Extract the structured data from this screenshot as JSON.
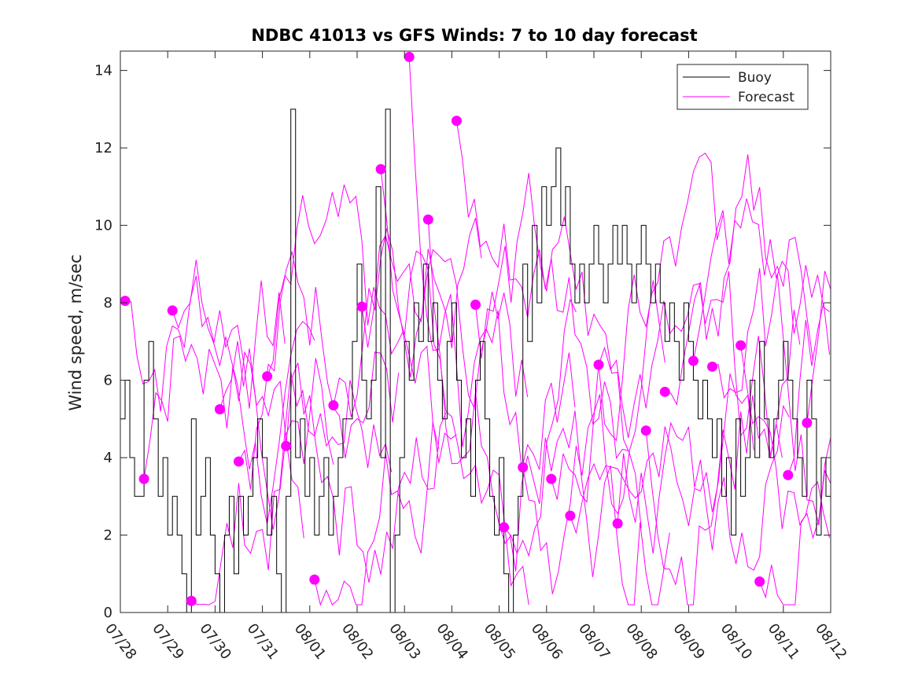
{
  "chart_data": {
    "type": "line",
    "title": "NDBC 41013 vs GFS Winds: 7 to 10 day forecast",
    "xlabel": "",
    "ylabel": "Wind speed, m/sec",
    "x_tick_labels": [
      "07/28",
      "07/29",
      "07/30",
      "07/31",
      "08/01",
      "08/02",
      "08/03",
      "08/04",
      "08/05",
      "08/06",
      "08/07",
      "08/08",
      "08/09",
      "08/10",
      "08/11",
      "08/12"
    ],
    "xlim_days": [
      0,
      15
    ],
    "ylim": [
      0,
      14.5
    ],
    "y_ticks": [
      0,
      2,
      4,
      6,
      8,
      10,
      12,
      14
    ],
    "grid": false,
    "legend_position": "top-right",
    "colors": {
      "buoy": "#000000",
      "forecast": "#ff00ff"
    },
    "series": [
      {
        "name": "Buoy",
        "style": "step-line",
        "points": [
          [
            0,
            5
          ],
          [
            0.1,
            6
          ],
          [
            0.2,
            4
          ],
          [
            0.3,
            3
          ],
          [
            0.5,
            6
          ],
          [
            0.6,
            7
          ],
          [
            0.7,
            5
          ],
          [
            0.8,
            3
          ],
          [
            0.9,
            4
          ],
          [
            1.0,
            2
          ],
          [
            1.1,
            3
          ],
          [
            1.2,
            2
          ],
          [
            1.3,
            1
          ],
          [
            1.4,
            0
          ],
          [
            1.5,
            5
          ],
          [
            1.6,
            2
          ],
          [
            1.7,
            3
          ],
          [
            1.8,
            4
          ],
          [
            1.9,
            2
          ],
          [
            2.0,
            1
          ],
          [
            2.1,
            0
          ],
          [
            2.2,
            2
          ],
          [
            2.3,
            3
          ],
          [
            2.4,
            1
          ],
          [
            2.5,
            3
          ],
          [
            2.6,
            2
          ],
          [
            2.7,
            3
          ],
          [
            2.8,
            4
          ],
          [
            2.9,
            5
          ],
          [
            3.0,
            4
          ],
          [
            3.1,
            2
          ],
          [
            3.2,
            3
          ],
          [
            3.3,
            1
          ],
          [
            3.4,
            0
          ],
          [
            3.5,
            3
          ],
          [
            3.6,
            13
          ],
          [
            3.7,
            4
          ],
          [
            3.8,
            5
          ],
          [
            3.9,
            3
          ],
          [
            4.0,
            4
          ],
          [
            4.1,
            2
          ],
          [
            4.2,
            3
          ],
          [
            4.3,
            4
          ],
          [
            4.4,
            2
          ],
          [
            4.5,
            3
          ],
          [
            4.6,
            4
          ],
          [
            4.7,
            5
          ],
          [
            4.8,
            5
          ],
          [
            4.9,
            7
          ],
          [
            5.0,
            9
          ],
          [
            5.1,
            6
          ],
          [
            5.2,
            5
          ],
          [
            5.3,
            6
          ],
          [
            5.4,
            11
          ],
          [
            5.5,
            4
          ],
          [
            5.6,
            13
          ],
          [
            5.7,
            0
          ],
          [
            5.8,
            2
          ],
          [
            5.9,
            4
          ],
          [
            6.0,
            7
          ],
          [
            6.1,
            6
          ],
          [
            6.2,
            8
          ],
          [
            6.3,
            7
          ],
          [
            6.4,
            9
          ],
          [
            6.5,
            7
          ],
          [
            6.6,
            8
          ],
          [
            6.7,
            6
          ],
          [
            6.8,
            5
          ],
          [
            6.9,
            7
          ],
          [
            7.0,
            8
          ],
          [
            7.1,
            6
          ],
          [
            7.2,
            4
          ],
          [
            7.3,
            5
          ],
          [
            7.4,
            3
          ],
          [
            7.5,
            6
          ],
          [
            7.6,
            7
          ],
          [
            7.7,
            5
          ],
          [
            7.8,
            3
          ],
          [
            7.9,
            2
          ],
          [
            8.0,
            4
          ],
          [
            8.1,
            1
          ],
          [
            8.2,
            0
          ],
          [
            8.3,
            2
          ],
          [
            8.4,
            3
          ],
          [
            8.5,
            9
          ],
          [
            8.6,
            7
          ],
          [
            8.7,
            10
          ],
          [
            8.8,
            8
          ],
          [
            8.9,
            11
          ],
          [
            9.0,
            10
          ],
          [
            9.1,
            11
          ],
          [
            9.2,
            12
          ],
          [
            9.3,
            10
          ],
          [
            9.4,
            11
          ],
          [
            9.5,
            9
          ],
          [
            9.6,
            8
          ],
          [
            9.7,
            9
          ],
          [
            9.8,
            8
          ],
          [
            9.9,
            9
          ],
          [
            10.0,
            10
          ],
          [
            10.1,
            9
          ],
          [
            10.2,
            8
          ],
          [
            10.3,
            9
          ],
          [
            10.4,
            10
          ],
          [
            10.5,
            9
          ],
          [
            10.6,
            10
          ],
          [
            10.7,
            9
          ],
          [
            10.8,
            8
          ],
          [
            10.9,
            9
          ],
          [
            11.0,
            10
          ],
          [
            11.1,
            9
          ],
          [
            11.2,
            8
          ],
          [
            11.3,
            9
          ],
          [
            11.4,
            8
          ],
          [
            11.5,
            7
          ],
          [
            11.6,
            8
          ],
          [
            11.7,
            7
          ],
          [
            11.8,
            6
          ],
          [
            11.9,
            8
          ],
          [
            12.0,
            7
          ],
          [
            12.1,
            6
          ],
          [
            12.2,
            5
          ],
          [
            12.3,
            6
          ],
          [
            12.4,
            5
          ],
          [
            12.5,
            4
          ],
          [
            12.6,
            5
          ],
          [
            12.7,
            3
          ],
          [
            12.8,
            4
          ],
          [
            12.9,
            2
          ],
          [
            13.0,
            5
          ],
          [
            13.1,
            3
          ],
          [
            13.2,
            4
          ],
          [
            13.3,
            6
          ],
          [
            13.4,
            4
          ],
          [
            13.5,
            7
          ],
          [
            13.6,
            5
          ],
          [
            13.7,
            4
          ],
          [
            13.8,
            5
          ],
          [
            13.9,
            6
          ],
          [
            14.0,
            7
          ],
          [
            14.1,
            6
          ],
          [
            14.2,
            5
          ],
          [
            14.3,
            4
          ],
          [
            14.4,
            3
          ],
          [
            14.5,
            6
          ],
          [
            14.6,
            5
          ],
          [
            14.7,
            2
          ],
          [
            14.8,
            4
          ],
          [
            14.9,
            3
          ],
          [
            15.0,
            4
          ]
        ]
      },
      {
        "name": "Forecast",
        "style": "lines-with-markers",
        "markers": [
          [
            0.1,
            8.05
          ],
          [
            0.5,
            3.45
          ],
          [
            1.1,
            7.8
          ],
          [
            1.5,
            0.3
          ],
          [
            2.1,
            5.25
          ],
          [
            2.5,
            3.9
          ],
          [
            3.1,
            6.1
          ],
          [
            3.5,
            4.3
          ],
          [
            4.1,
            0.85
          ],
          [
            4.5,
            5.35
          ],
          [
            5.1,
            7.9
          ],
          [
            5.5,
            11.45
          ],
          [
            6.1,
            14.35
          ],
          [
            6.5,
            10.15
          ],
          [
            7.1,
            12.7
          ],
          [
            7.5,
            7.95
          ],
          [
            8.1,
            2.2
          ],
          [
            8.5,
            3.75
          ],
          [
            9.1,
            3.45
          ],
          [
            9.5,
            2.5
          ],
          [
            10.1,
            6.4
          ],
          [
            10.5,
            2.3
          ],
          [
            11.1,
            4.7
          ],
          [
            11.5,
            5.7
          ],
          [
            12.1,
            6.5
          ],
          [
            12.5,
            6.35
          ],
          [
            13.1,
            6.9
          ],
          [
            13.5,
            0.8
          ],
          [
            14.1,
            3.55
          ],
          [
            14.5,
            4.9
          ]
        ]
      }
    ]
  }
}
